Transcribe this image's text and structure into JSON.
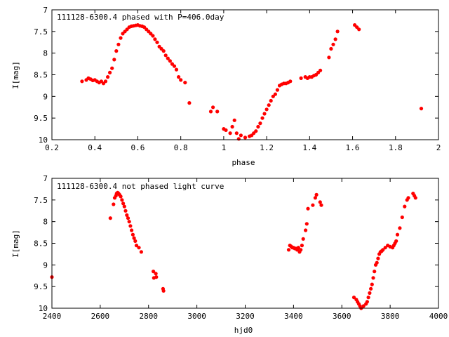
{
  "chart_data": [
    {
      "type": "scatter",
      "title": "111128-6300.4 phased with P=406.0day",
      "xlabel": "phase",
      "ylabel": "I[mag]",
      "xlim": [
        0.2,
        2
      ],
      "ylim": [
        10,
        7
      ],
      "y_inverted": true,
      "grid": false,
      "marker_color": "#ff0000",
      "xticks": [
        "0.2",
        "0.4",
        "0.6",
        "0.8",
        "1",
        "1.2",
        "1.4",
        "1.6",
        "1.8",
        "2"
      ],
      "yticks": [
        "7",
        "7.5",
        "8",
        "8.5",
        "9",
        "9.5",
        "10"
      ],
      "series": [
        {
          "x": [
            0.34,
            0.36,
            0.37,
            0.38,
            0.39,
            0.4,
            0.41,
            0.42,
            0.43,
            0.44,
            0.45,
            0.46,
            0.47,
            0.48,
            0.49,
            0.5,
            0.51,
            0.52,
            0.53,
            0.54,
            0.55,
            0.56,
            0.57,
            0.58,
            0.59,
            0.6,
            0.61,
            0.62,
            0.63,
            0.64,
            0.65,
            0.66,
            0.67,
            0.68,
            0.69,
            0.7,
            0.71,
            0.72,
            0.73,
            0.74,
            0.75,
            0.76,
            0.77,
            0.78,
            0.79,
            0.8,
            0.82,
            0.84,
            0.94,
            0.95,
            0.97,
            1.0,
            1.01,
            1.03,
            1.04,
            1.05,
            1.06,
            1.07,
            1.08,
            1.1,
            1.12,
            1.13,
            1.14,
            1.15,
            1.16,
            1.17,
            1.18,
            1.19,
            1.2,
            1.21,
            1.22,
            1.23,
            1.24,
            1.25,
            1.26,
            1.27,
            1.28,
            1.29,
            1.3,
            1.31,
            1.36,
            1.38,
            1.39,
            1.4,
            1.41,
            1.42,
            1.43,
            1.44,
            1.45,
            1.49,
            1.5,
            1.51,
            1.52,
            1.53,
            1.61,
            1.62,
            1.63,
            1.92
          ],
          "y": [
            8.65,
            8.62,
            8.58,
            8.6,
            8.63,
            8.62,
            8.65,
            8.68,
            8.65,
            8.7,
            8.65,
            8.55,
            8.45,
            8.35,
            8.15,
            7.95,
            7.8,
            7.65,
            7.55,
            7.5,
            7.45,
            7.4,
            7.38,
            7.37,
            7.36,
            7.35,
            7.37,
            7.38,
            7.4,
            7.45,
            7.5,
            7.55,
            7.6,
            7.68,
            7.75,
            7.85,
            7.9,
            7.95,
            8.05,
            8.12,
            8.18,
            8.25,
            8.3,
            8.38,
            8.55,
            8.62,
            8.68,
            9.15,
            9.35,
            9.25,
            9.35,
            9.75,
            9.78,
            9.85,
            9.7,
            9.55,
            9.85,
            9.98,
            9.9,
            9.95,
            9.92,
            9.9,
            9.85,
            9.8,
            9.7,
            9.62,
            9.5,
            9.4,
            9.3,
            9.2,
            9.1,
            9.0,
            8.95,
            8.85,
            8.75,
            8.72,
            8.7,
            8.7,
            8.68,
            8.65,
            8.58,
            8.55,
            8.58,
            8.55,
            8.55,
            8.52,
            8.5,
            8.45,
            8.4,
            8.1,
            7.9,
            7.8,
            7.68,
            7.5,
            7.35,
            7.4,
            7.45,
            9.28
          ]
        }
      ]
    },
    {
      "type": "scatter",
      "title": "111128-6300.4 not phased light curve",
      "xlabel": "hjd0",
      "ylabel": "I[mag]",
      "xlim": [
        2400,
        4000
      ],
      "ylim": [
        10,
        7
      ],
      "y_inverted": true,
      "grid": false,
      "marker_color": "#ff0000",
      "xticks": [
        "2400",
        "2600",
        "2800",
        "3000",
        "3200",
        "3400",
        "3600",
        "3800",
        "4000"
      ],
      "yticks": [
        "7",
        "7.5",
        "8",
        "8.5",
        "9",
        "9.5",
        "10"
      ],
      "series": [
        {
          "x": [
            2400,
            2642,
            2655,
            2660,
            2665,
            2668,
            2672,
            2676,
            2680,
            2685,
            2690,
            2695,
            2700,
            2705,
            2710,
            2715,
            2720,
            2725,
            2730,
            2735,
            2740,
            2745,
            2750,
            2760,
            2770,
            2820,
            2822,
            2830,
            2832,
            2860,
            2862,
            3380,
            3385,
            3390,
            3395,
            3400,
            3405,
            3410,
            3415,
            3420,
            3425,
            3430,
            3435,
            3440,
            3450,
            3455,
            3460,
            3480,
            3490,
            3495,
            3510,
            3515,
            3650,
            3660,
            3665,
            3670,
            3675,
            3680,
            3690,
            3700,
            3705,
            3710,
            3715,
            3720,
            3725,
            3730,
            3735,
            3740,
            3745,
            3750,
            3755,
            3760,
            3765,
            3770,
            3780,
            3790,
            3800,
            3810,
            3815,
            3820,
            3825,
            3830,
            3840,
            3850,
            3860,
            3870,
            3875,
            3895,
            3900,
            3905
          ],
          "y": [
            9.28,
            7.92,
            7.6,
            7.45,
            7.4,
            7.35,
            7.33,
            7.35,
            7.38,
            7.42,
            7.5,
            7.58,
            7.65,
            7.75,
            7.85,
            7.92,
            8.0,
            8.1,
            8.2,
            8.3,
            8.38,
            8.45,
            8.55,
            8.6,
            8.7,
            9.15,
            9.3,
            9.2,
            9.28,
            9.55,
            9.6,
            8.65,
            8.55,
            8.57,
            8.6,
            8.6,
            8.62,
            8.62,
            8.65,
            8.6,
            8.7,
            8.65,
            8.55,
            8.4,
            8.2,
            8.05,
            7.7,
            7.62,
            7.45,
            7.38,
            7.55,
            7.62,
            9.75,
            9.8,
            9.85,
            9.9,
            9.95,
            10.0,
            9.95,
            9.9,
            9.85,
            9.75,
            9.65,
            9.55,
            9.45,
            9.3,
            9.15,
            9.0,
            8.95,
            8.85,
            8.75,
            8.7,
            8.68,
            8.65,
            8.6,
            8.55,
            8.58,
            8.6,
            8.55,
            8.5,
            8.45,
            8.3,
            8.15,
            7.9,
            7.65,
            7.5,
            7.45,
            7.35,
            7.4,
            7.45
          ]
        }
      ]
    }
  ]
}
